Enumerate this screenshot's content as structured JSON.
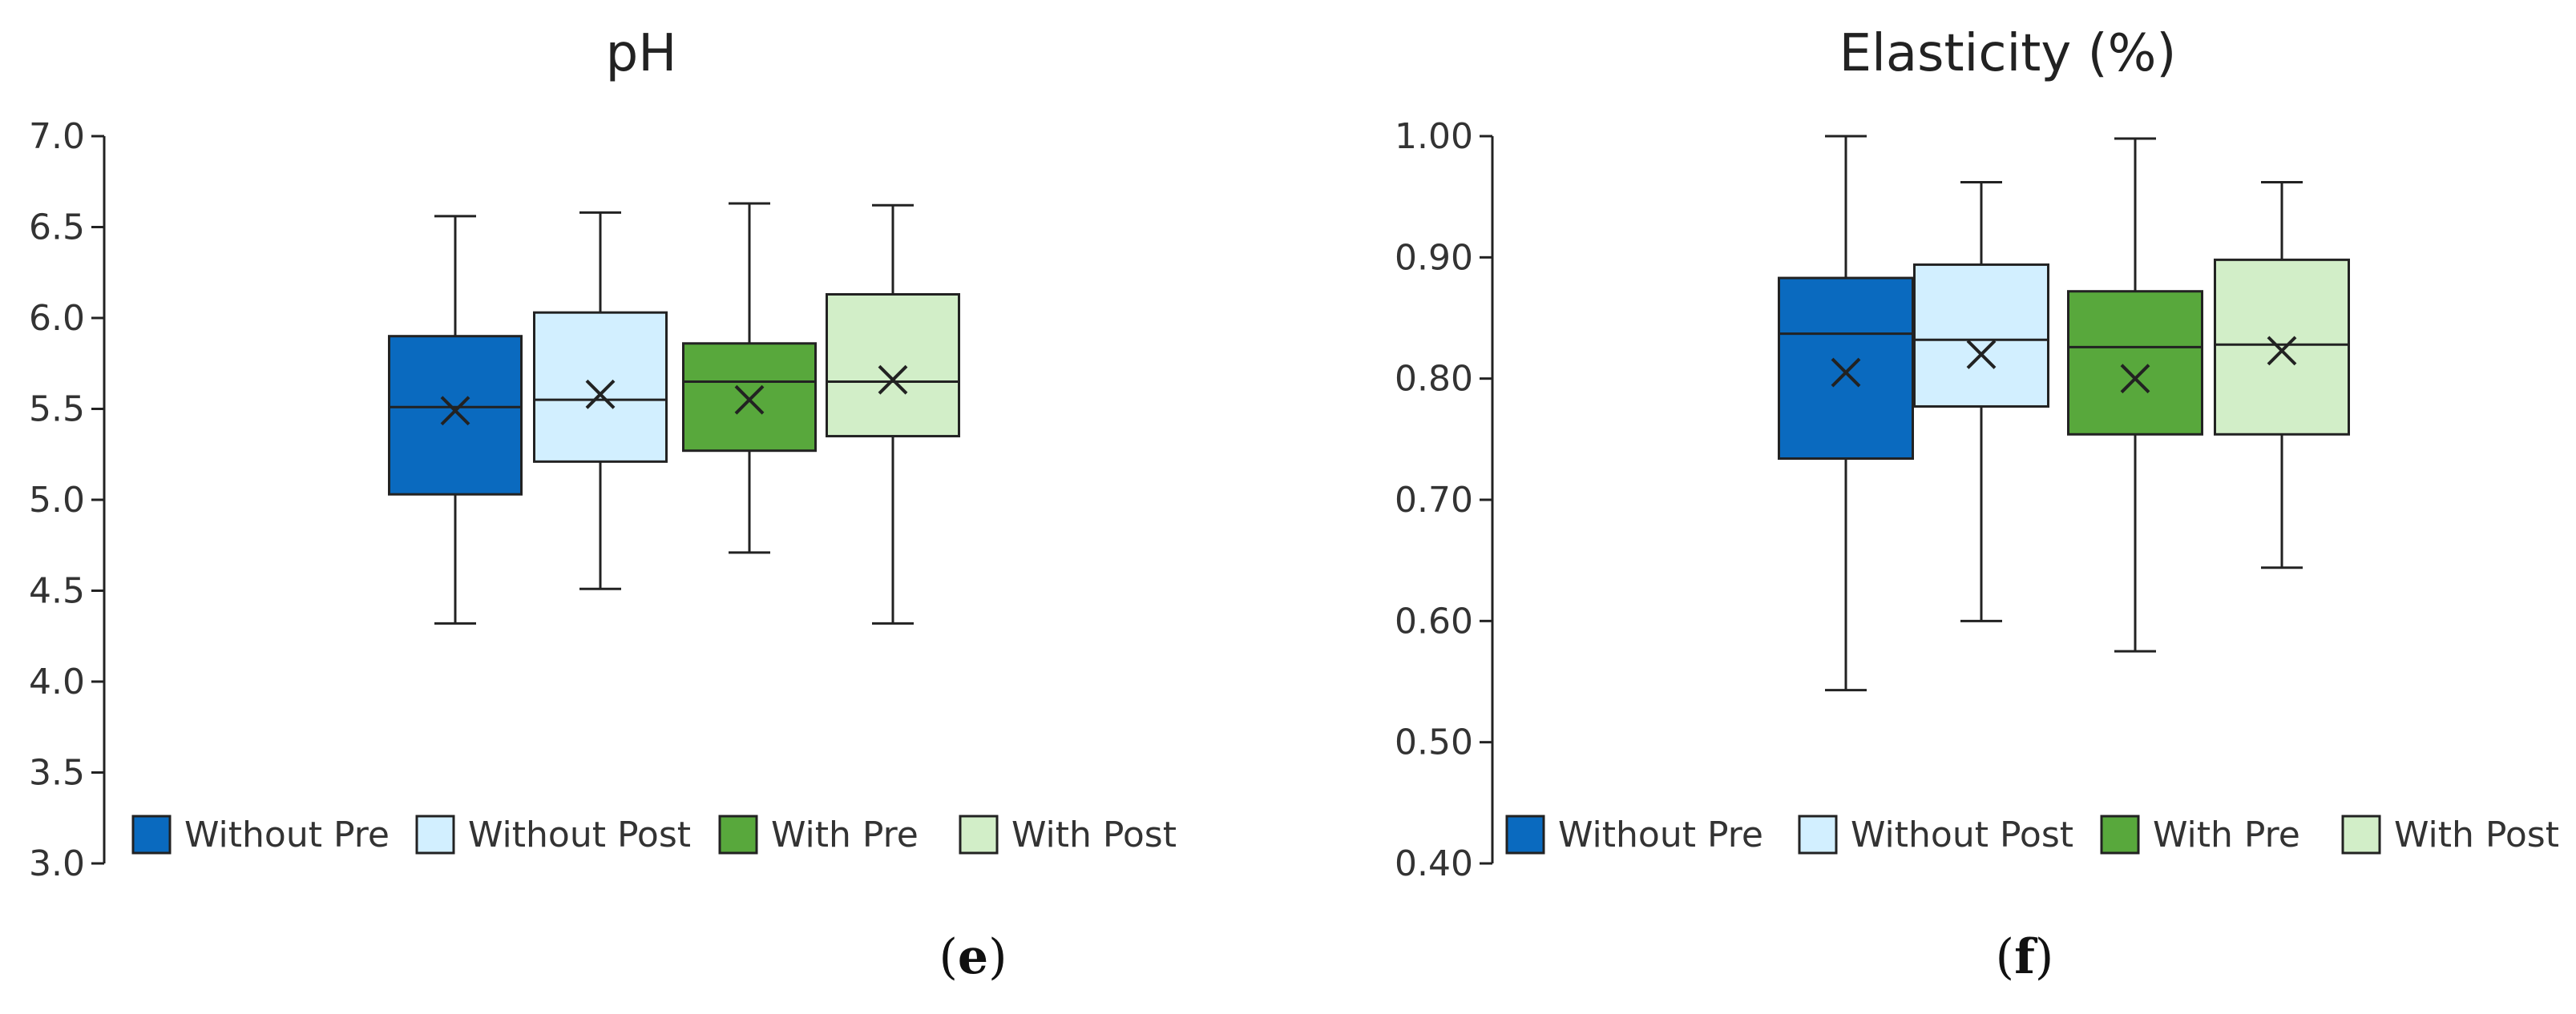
{
  "chart_data": [
    {
      "type": "box",
      "title": "pH",
      "panel_label": "e",
      "ylim": [
        3.0,
        7.0
      ],
      "yticks": [
        "3.0",
        "3.5",
        "4.0",
        "4.5",
        "5.0",
        "5.5",
        "6.0",
        "6.5",
        "7.0"
      ],
      "grid": false,
      "legend_position": "bottom",
      "series": [
        {
          "name": "Without Pre",
          "color": "#0a6abf",
          "min": 4.32,
          "q1": 5.03,
          "median": 5.51,
          "q3": 5.9,
          "max": 6.56,
          "mean": 5.49
        },
        {
          "name": "Without Post",
          "color": "#d2efff",
          "min": 4.51,
          "q1": 5.21,
          "median": 5.55,
          "q3": 6.03,
          "max": 6.58,
          "mean": 5.58
        },
        {
          "name": "With Pre",
          "color": "#58a83c",
          "min": 4.71,
          "q1": 5.27,
          "median": 5.65,
          "q3": 5.86,
          "max": 6.63,
          "mean": 5.55
        },
        {
          "name": "With Post",
          "color": "#d2eec8",
          "min": 4.32,
          "q1": 5.35,
          "median": 5.65,
          "q3": 6.13,
          "max": 6.62,
          "mean": 5.66
        }
      ]
    },
    {
      "type": "box",
      "title": "Elasticity (%)",
      "panel_label": "f",
      "ylim": [
        0.4,
        1.0
      ],
      "yticks": [
        "0.40",
        "0.50",
        "0.60",
        "0.70",
        "0.80",
        "0.90",
        "1.00"
      ],
      "grid": false,
      "legend_position": "bottom",
      "series": [
        {
          "name": "Without Pre",
          "color": "#0a6abf",
          "min": 0.543,
          "q1": 0.734,
          "median": 0.837,
          "q3": 0.883,
          "max": 1.0,
          "mean": 0.805
        },
        {
          "name": "Without Post",
          "color": "#d2efff",
          "min": 0.6,
          "q1": 0.777,
          "median": 0.832,
          "q3": 0.894,
          "max": 0.962,
          "mean": 0.82
        },
        {
          "name": "With Pre",
          "color": "#58a83c",
          "min": 0.575,
          "q1": 0.754,
          "median": 0.826,
          "q3": 0.872,
          "max": 0.998,
          "mean": 0.8
        },
        {
          "name": "With Post",
          "color": "#d2eec8",
          "min": 0.644,
          "q1": 0.754,
          "median": 0.828,
          "q3": 0.898,
          "max": 0.962,
          "mean": 0.823
        }
      ]
    }
  ]
}
